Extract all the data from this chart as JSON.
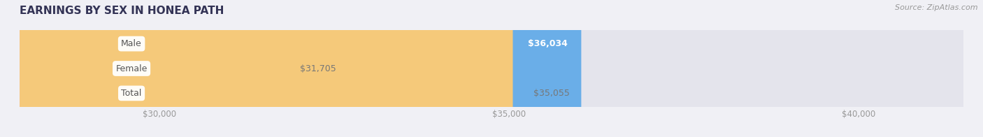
{
  "title": "EARNINGS BY SEX IN HONEA PATH",
  "source": "Source: ZipAtlas.com",
  "categories": [
    "Male",
    "Female",
    "Total"
  ],
  "values": [
    36034,
    31705,
    35055
  ],
  "bar_colors": [
    "#6aaee8",
    "#f4a8c0",
    "#f5c97a"
  ],
  "value_label_colors": [
    "#ffffff",
    "#777777",
    "#777777"
  ],
  "value_labels": [
    "$36,034",
    "$31,705",
    "$35,055"
  ],
  "xlim_min": 28000,
  "xlim_max": 41500,
  "xticks": [
    30000,
    35000,
    40000
  ],
  "xtick_labels": [
    "$30,000",
    "$35,000",
    "$40,000"
  ],
  "background_color": "#f0f0f5",
  "bar_bg_color": "#e4e4ec",
  "title_color": "#333355",
  "source_color": "#999999",
  "category_label_color": "#555555"
}
